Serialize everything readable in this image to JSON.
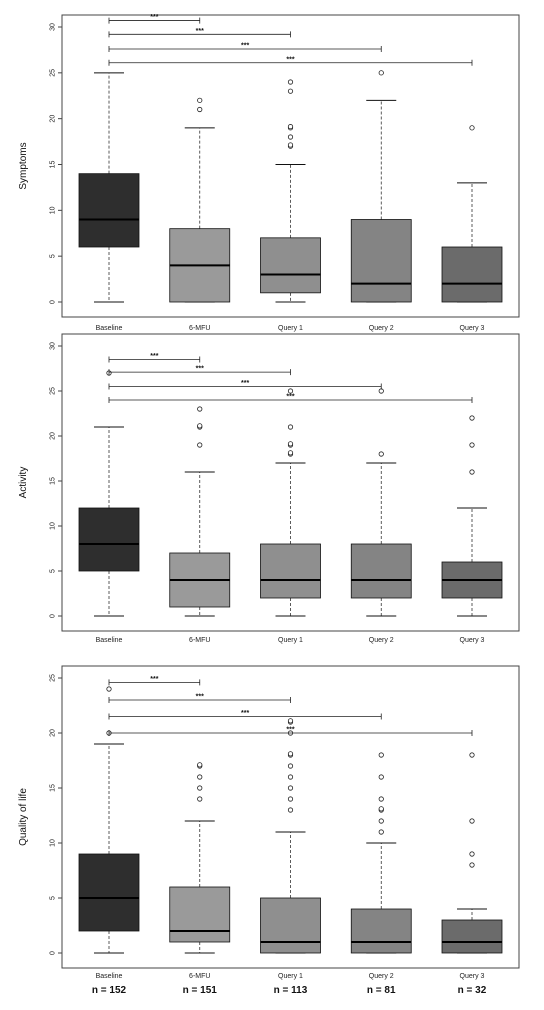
{
  "chart_data": [
    {
      "type": "box",
      "ylabel": "Symptoms",
      "ylim": [
        0,
        30
      ],
      "yticks": [
        0,
        5,
        10,
        15,
        20,
        25,
        30
      ],
      "categories": [
        "Baseline",
        "6-MFU",
        "Query 1",
        "Query 2",
        "Query 3"
      ],
      "colors": [
        "#2e2e2e",
        "#9a9a9a",
        "#8f8f8f",
        "#848484",
        "#6b6b6b"
      ],
      "boxes": [
        {
          "min": 0,
          "q1": 6,
          "median": 9,
          "q3": 14,
          "max": 25,
          "outliers": []
        },
        {
          "min": 0,
          "q1": 0,
          "median": 4,
          "q3": 8,
          "max": 19,
          "outliers": [
            21,
            22
          ]
        },
        {
          "min": 0,
          "q1": 1,
          "median": 3,
          "q3": 7,
          "max": 15,
          "outliers": [
            17,
            17,
            18,
            19,
            19,
            23,
            24
          ]
        },
        {
          "min": 0,
          "q1": 0,
          "median": 2,
          "q3": 9,
          "max": 22,
          "outliers": [
            25
          ]
        },
        {
          "min": 0,
          "q1": 0,
          "median": 2,
          "q3": 6,
          "max": 13,
          "outliers": [
            19
          ]
        }
      ],
      "comparisons": [
        {
          "from": 0,
          "to": 1,
          "y": 30.7,
          "label": "***"
        },
        {
          "from": 0,
          "to": 2,
          "y": 29.2,
          "label": "***"
        },
        {
          "from": 0,
          "to": 3,
          "y": 27.6,
          "label": "***"
        },
        {
          "from": 0,
          "to": 4,
          "y": 26.1,
          "label": "***"
        }
      ]
    },
    {
      "type": "box",
      "ylabel": "Activity",
      "ylim": [
        0,
        30
      ],
      "yticks": [
        0,
        5,
        10,
        15,
        20,
        25,
        30
      ],
      "categories": [
        "Baseline",
        "6-MFU",
        "Query 1",
        "Query 2",
        "Query 3"
      ],
      "colors": [
        "#2e2e2e",
        "#9a9a9a",
        "#8f8f8f",
        "#848484",
        "#6b6b6b"
      ],
      "boxes": [
        {
          "min": 0,
          "q1": 5,
          "median": 8,
          "q3": 12,
          "max": 21,
          "outliers": [
            27
          ]
        },
        {
          "min": 0,
          "q1": 1,
          "median": 4,
          "q3": 7,
          "max": 16,
          "outliers": [
            19,
            21,
            21,
            23
          ]
        },
        {
          "min": 0,
          "q1": 2,
          "median": 4,
          "q3": 8,
          "max": 17,
          "outliers": [
            18,
            18,
            19,
            19,
            21,
            25
          ]
        },
        {
          "min": 0,
          "q1": 2,
          "median": 4,
          "q3": 8,
          "max": 17,
          "outliers": [
            18,
            25
          ]
        },
        {
          "min": 0,
          "q1": 2,
          "median": 4,
          "q3": 6,
          "max": 12,
          "outliers": [
            16,
            19,
            22
          ]
        }
      ],
      "comparisons": [
        {
          "from": 0,
          "to": 1,
          "y": 28.5,
          "label": "***"
        },
        {
          "from": 0,
          "to": 2,
          "y": 27.1,
          "label": "***"
        },
        {
          "from": 0,
          "to": 3,
          "y": 25.5,
          "label": "***"
        },
        {
          "from": 0,
          "to": 4,
          "y": 24.0,
          "label": "***"
        }
      ]
    },
    {
      "type": "box",
      "ylabel": "Quality of life",
      "ylim": [
        0,
        25
      ],
      "yticks": [
        0,
        5,
        10,
        15,
        20,
        25
      ],
      "categories": [
        "Baseline",
        "6-MFU",
        "Query 1",
        "Query 2",
        "Query 3"
      ],
      "colors": [
        "#2e2e2e",
        "#9a9a9a",
        "#8f8f8f",
        "#848484",
        "#6b6b6b"
      ],
      "boxes": [
        {
          "min": 0,
          "q1": 2,
          "median": 5,
          "q3": 9,
          "max": 19,
          "outliers": [
            20,
            24
          ]
        },
        {
          "min": 0,
          "q1": 1,
          "median": 2,
          "q3": 6,
          "max": 12,
          "outliers": [
            14,
            15,
            16,
            17,
            17
          ]
        },
        {
          "min": 0,
          "q1": 0,
          "median": 1,
          "q3": 5,
          "max": 11,
          "outliers": [
            13,
            14,
            15,
            16,
            17,
            18,
            18,
            20,
            21,
            21
          ]
        },
        {
          "min": 0,
          "q1": 0,
          "median": 1,
          "q3": 4,
          "max": 10,
          "outliers": [
            11,
            12,
            13,
            13,
            14,
            16,
            18
          ]
        },
        {
          "min": 0,
          "q1": 0,
          "median": 1,
          "q3": 3,
          "max": 4,
          "outliers": [
            8,
            9,
            12,
            18
          ]
        }
      ],
      "comparisons": [
        {
          "from": 0,
          "to": 1,
          "y": 24.6,
          "label": "***"
        },
        {
          "from": 0,
          "to": 2,
          "y": 23.0,
          "label": "***"
        },
        {
          "from": 0,
          "to": 3,
          "y": 21.5,
          "label": "***"
        },
        {
          "from": 0,
          "to": 4,
          "y": 20.0,
          "label": "***"
        }
      ],
      "n_labels": [
        "n = 152",
        "n = 151",
        "n = 113",
        "n = 81",
        "n = 32"
      ]
    }
  ]
}
